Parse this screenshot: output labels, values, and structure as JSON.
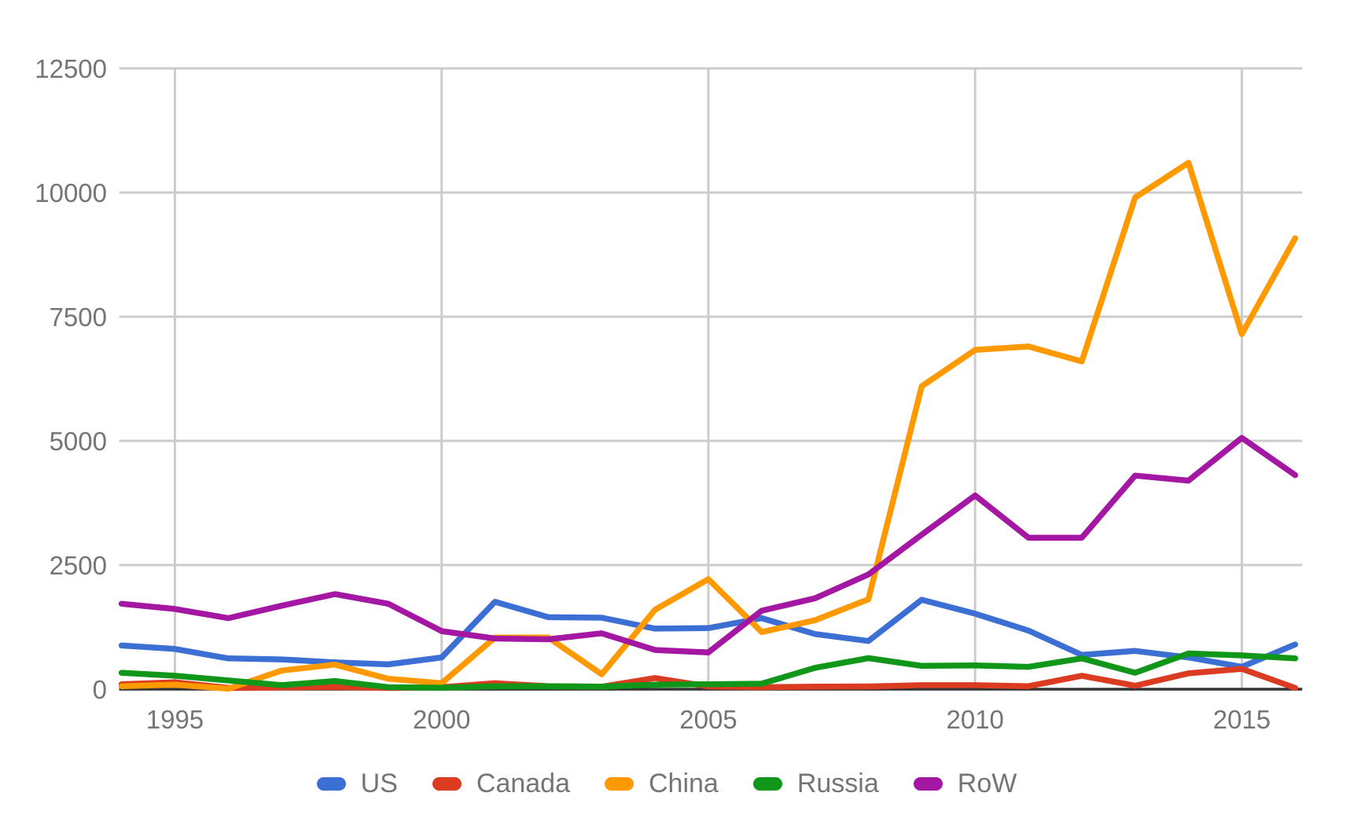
{
  "chart_data": {
    "type": "line",
    "x": [
      1994,
      1995,
      1996,
      1997,
      1998,
      1999,
      2000,
      2001,
      2002,
      2003,
      2004,
      2005,
      2006,
      2007,
      2008,
      2009,
      2010,
      2011,
      2012,
      2013,
      2014,
      2015,
      2016
    ],
    "series": [
      {
        "name": "US",
        "color": "#3b6fd4",
        "values": [
          880,
          810,
          620,
          600,
          540,
          500,
          640,
          1760,
          1450,
          1440,
          1220,
          1230,
          1430,
          1110,
          970,
          1800,
          1520,
          1180,
          690,
          770,
          640,
          450,
          900
        ]
      },
      {
        "name": "Canada",
        "color": "#db3b21",
        "values": [
          100,
          140,
          25,
          35,
          45,
          25,
          40,
          120,
          60,
          50,
          225,
          55,
          40,
          50,
          55,
          80,
          80,
          60,
          270,
          70,
          320,
          410,
          25
        ]
      },
      {
        "name": "China",
        "color": "#ff9900",
        "values": [
          60,
          90,
          10,
          375,
          495,
          210,
          120,
          1040,
          1040,
          300,
          1600,
          2215,
          1150,
          1390,
          1810,
          6100,
          6830,
          6900,
          6600,
          9900,
          10600,
          7150,
          9080
        ]
      },
      {
        "name": "Russia",
        "color": "#109618",
        "values": [
          330,
          270,
          175,
          80,
          165,
          40,
          30,
          60,
          60,
          50,
          90,
          100,
          110,
          430,
          625,
          470,
          480,
          450,
          620,
          330,
          720,
          680,
          620
        ]
      },
      {
        "name": "RoW",
        "color": "#a317a3",
        "values": [
          1720,
          1615,
          1430,
          1680,
          1915,
          1720,
          1170,
          1020,
          1005,
          1125,
          790,
          740,
          1580,
          1830,
          2310,
          3110,
          3900,
          3050,
          3050,
          4300,
          4200,
          5060,
          4310
        ]
      }
    ],
    "title": "",
    "xlabel": "",
    "ylabel": "",
    "ylim": [
      0,
      12500
    ],
    "yticks": [
      0,
      2500,
      5000,
      7500,
      10000,
      12500
    ],
    "xticks": [
      1995,
      2000,
      2005,
      2010,
      2015
    ],
    "grid": true,
    "legend_position": "bottom"
  },
  "style": {
    "background": "#ffffff",
    "gridline_color": "#cccccc",
    "baseline_color": "#333333",
    "axis_label_color": "#757575"
  }
}
